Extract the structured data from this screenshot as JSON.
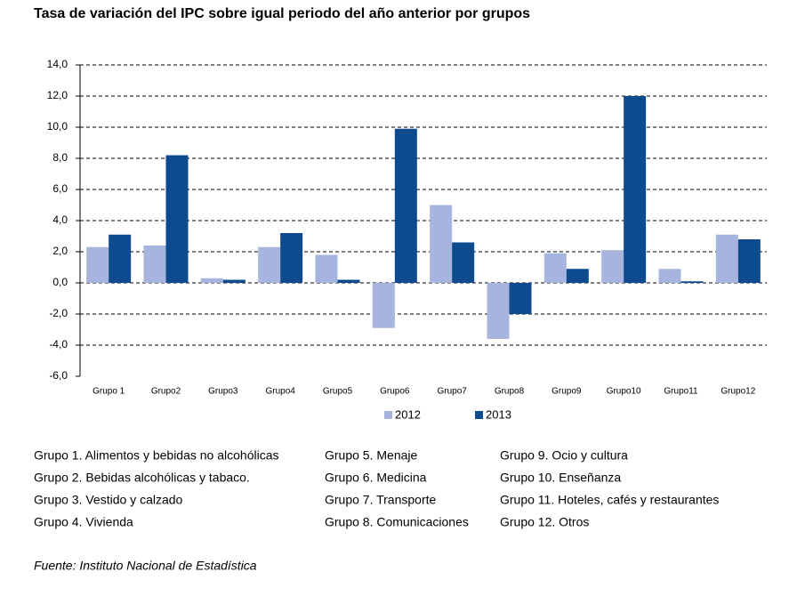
{
  "chart_data": {
    "type": "bar",
    "title": "Tasa de variación del IPC sobre igual periodo del año anterior por grupos",
    "categories": [
      "Grupo 1",
      "Grupo2",
      "Grupo3",
      "Grupo4",
      "Grupo5",
      "Grupo6",
      "Grupo7",
      "Grupo8",
      "Grupo9",
      "Grupo10",
      "Grupo11",
      "Grupo12"
    ],
    "series": [
      {
        "name": "2012",
        "color": "#a7b5de",
        "values": [
          2.3,
          2.4,
          0.3,
          2.3,
          1.8,
          -2.9,
          5.0,
          -3.6,
          1.9,
          2.1,
          0.9,
          3.1
        ]
      },
      {
        "name": "2013",
        "color": "#0d4a8e",
        "values": [
          3.1,
          8.2,
          0.2,
          3.2,
          0.2,
          9.9,
          2.6,
          -2.0,
          0.9,
          12.0,
          0.1,
          2.8
        ]
      }
    ],
    "ylim": [
      -6,
      14
    ],
    "yticks": [
      {
        "value": -6,
        "label": "-6,0"
      },
      {
        "value": -4,
        "label": "-4,0"
      },
      {
        "value": -2,
        "label": "-2,0"
      },
      {
        "value": 0,
        "label": "0,0"
      },
      {
        "value": 2,
        "label": "2,0"
      },
      {
        "value": 4,
        "label": "4,0"
      },
      {
        "value": 6,
        "label": "6,0"
      },
      {
        "value": 8,
        "label": "8,0"
      },
      {
        "value": 10,
        "label": "10,0"
      },
      {
        "value": 12,
        "label": "12,0"
      },
      {
        "value": 14,
        "label": "14,0"
      }
    ],
    "grid": true,
    "legend": "bottom"
  },
  "notes": [
    [
      "Grupo 1. Alimentos y bebidas no alcohólicas",
      "Grupo 2. Bebidas alcohólicas y  tabaco.",
      "Grupo 3. Vestido y calzado",
      "Grupo 4. Vivienda"
    ],
    [
      "Grupo 5. Menaje",
      "Grupo 6. Medicina",
      "Grupo 7. Transporte",
      "Grupo 8. Comunicaciones"
    ],
    [
      "Grupo 9. Ocio y cultura",
      "Grupo 10. Enseñanza",
      "Grupo 11. Hoteles, cafés y restaurantes",
      "Grupo 12. Otros"
    ]
  ],
  "source": "Fuente: Instituto Nacional de Estadística"
}
